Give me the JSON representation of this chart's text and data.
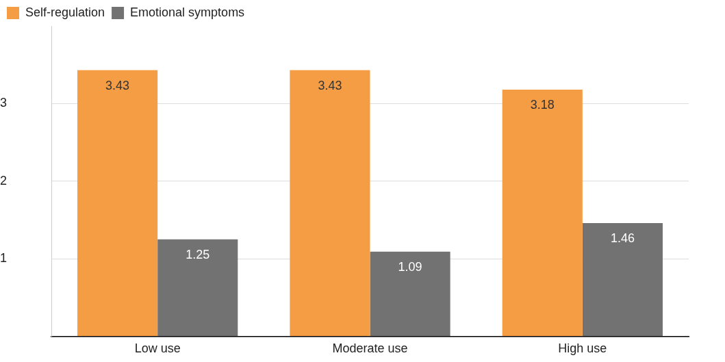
{
  "chart_data": {
    "type": "bar",
    "categories": [
      "Low use",
      "Moderate use",
      "High use"
    ],
    "series": [
      {
        "name": "Self-regulation",
        "color": "#f59d45",
        "values": [
          3.43,
          3.43,
          3.18
        ]
      },
      {
        "name": "Emotional symptoms",
        "color": "#727272",
        "values": [
          1.25,
          1.09,
          1.46
        ]
      }
    ],
    "ylim": [
      0,
      4
    ],
    "yticks": [
      {
        "value": 0,
        "label": null
      },
      1,
      2,
      3
    ],
    "grid": "y",
    "legend": "top left",
    "data_labels": true
  }
}
